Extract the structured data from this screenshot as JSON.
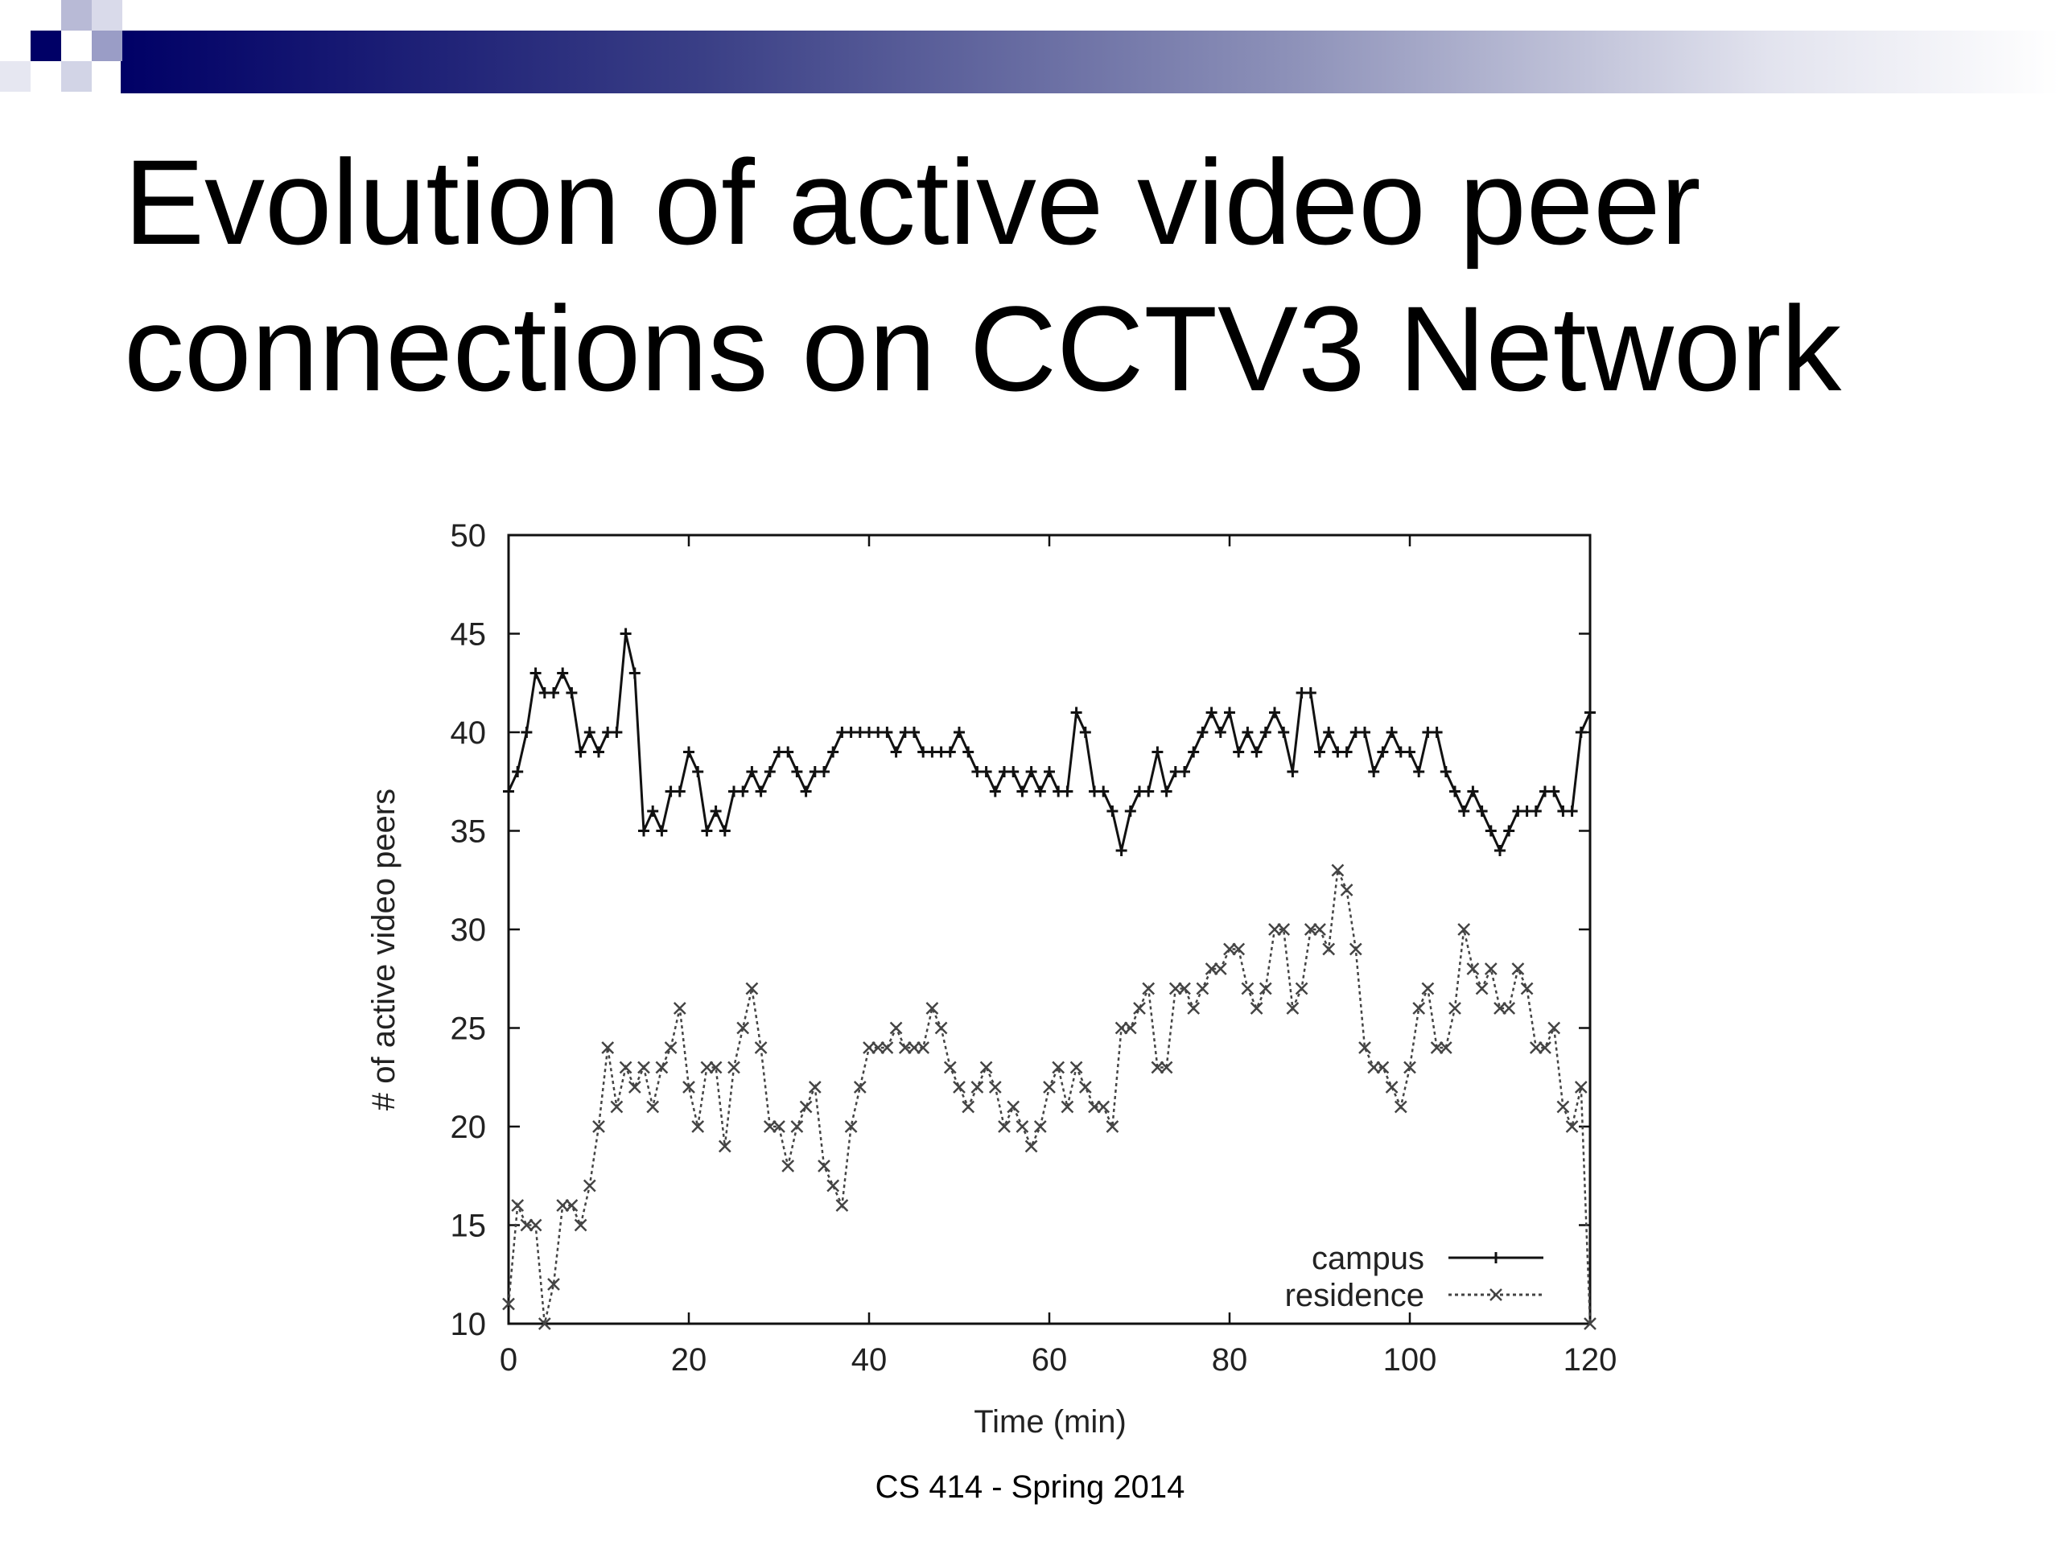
{
  "slide": {
    "title_line1": "Evolution of active video peer",
    "title_line2": "connections on CCTV3 Network",
    "footer": "CS 414 - Spring 2014"
  },
  "colors": {
    "title_bar_dark": "#000066",
    "title_bar_light": "#c8cae0",
    "campus": "#111111",
    "residence": "#444444"
  },
  "chart_data": {
    "type": "line",
    "title": "",
    "xlabel": "Time (min)",
    "ylabel": "# of active video peers",
    "xlim": [
      0,
      120
    ],
    "ylim": [
      10,
      50
    ],
    "xticks": [
      0,
      20,
      40,
      60,
      80,
      100,
      120
    ],
    "yticks": [
      10,
      15,
      20,
      25,
      30,
      35,
      40,
      45,
      50
    ],
    "grid": false,
    "legend_position": "bottom-right",
    "series": [
      {
        "name": "campus",
        "marker": "+",
        "line": "solid",
        "x": [
          0,
          1,
          2,
          3,
          4,
          5,
          6,
          7,
          8,
          9,
          10,
          11,
          12,
          13,
          14,
          15,
          16,
          17,
          18,
          19,
          20,
          21,
          22,
          23,
          24,
          25,
          26,
          27,
          28,
          29,
          30,
          31,
          32,
          33,
          34,
          35,
          36,
          37,
          38,
          39,
          40,
          41,
          42,
          43,
          44,
          45,
          46,
          47,
          48,
          49,
          50,
          51,
          52,
          53,
          54,
          55,
          56,
          57,
          58,
          59,
          60,
          61,
          62,
          63,
          64,
          65,
          66,
          67,
          68,
          69,
          70,
          71,
          72,
          73,
          74,
          75,
          76,
          77,
          78,
          79,
          80,
          81,
          82,
          83,
          84,
          85,
          86,
          87,
          88,
          89,
          90,
          91,
          92,
          93,
          94,
          95,
          96,
          97,
          98,
          99,
          100,
          101,
          102,
          103,
          104,
          105,
          106,
          107,
          108,
          109,
          110,
          111,
          112,
          113,
          114,
          115,
          116,
          117,
          118,
          119,
          120
        ],
        "y": [
          37,
          38,
          40,
          43,
          42,
          42,
          43,
          42,
          39,
          40,
          39,
          40,
          40,
          45,
          43,
          35,
          36,
          35,
          37,
          37,
          39,
          38,
          35,
          36,
          35,
          37,
          37,
          38,
          37,
          38,
          39,
          39,
          38,
          37,
          38,
          38,
          39,
          40,
          40,
          40,
          40,
          40,
          40,
          39,
          40,
          40,
          39,
          39,
          39,
          39,
          40,
          39,
          38,
          38,
          37,
          38,
          38,
          37,
          38,
          37,
          38,
          37,
          37,
          41,
          40,
          37,
          37,
          36,
          34,
          36,
          37,
          37,
          39,
          37,
          38,
          38,
          39,
          40,
          41,
          40,
          41,
          39,
          40,
          39,
          40,
          41,
          40,
          38,
          42,
          42,
          39,
          40,
          39,
          39,
          40,
          40,
          38,
          39,
          40,
          39,
          39,
          38,
          40,
          40,
          38,
          37,
          36,
          37,
          36,
          35,
          34,
          35,
          36,
          36,
          36,
          37,
          37,
          36,
          36,
          40,
          41
        ]
      },
      {
        "name": "residence",
        "marker": "x",
        "line": "dotted",
        "x": [
          0,
          1,
          2,
          3,
          4,
          5,
          6,
          7,
          8,
          9,
          10,
          11,
          12,
          13,
          14,
          15,
          16,
          17,
          18,
          19,
          20,
          21,
          22,
          23,
          24,
          25,
          26,
          27,
          28,
          29,
          30,
          31,
          32,
          33,
          34,
          35,
          36,
          37,
          38,
          39,
          40,
          41,
          42,
          43,
          44,
          45,
          46,
          47,
          48,
          49,
          50,
          51,
          52,
          53,
          54,
          55,
          56,
          57,
          58,
          59,
          60,
          61,
          62,
          63,
          64,
          65,
          66,
          67,
          68,
          69,
          70,
          71,
          72,
          73,
          74,
          75,
          76,
          77,
          78,
          79,
          80,
          81,
          82,
          83,
          84,
          85,
          86,
          87,
          88,
          89,
          90,
          91,
          92,
          93,
          94,
          95,
          96,
          97,
          98,
          99,
          100,
          101,
          102,
          103,
          104,
          105,
          106,
          107,
          108,
          109,
          110,
          111,
          112,
          113,
          114,
          115,
          116,
          117,
          118,
          119,
          120
        ],
        "y": [
          11,
          16,
          15,
          15,
          10,
          12,
          16,
          16,
          15,
          17,
          20,
          24,
          21,
          23,
          22,
          23,
          21,
          23,
          24,
          26,
          22,
          20,
          23,
          23,
          19,
          23,
          25,
          27,
          24,
          20,
          20,
          18,
          20,
          21,
          22,
          18,
          17,
          16,
          20,
          22,
          24,
          24,
          24,
          25,
          24,
          24,
          24,
          26,
          25,
          23,
          22,
          21,
          22,
          23,
          22,
          20,
          21,
          20,
          19,
          20,
          22,
          23,
          21,
          23,
          22,
          21,
          21,
          20,
          25,
          25,
          26,
          27,
          23,
          23,
          27,
          27,
          26,
          27,
          28,
          28,
          29,
          29,
          27,
          26,
          27,
          30,
          30,
          26,
          27,
          30,
          30,
          29,
          33,
          32,
          29,
          24,
          23,
          23,
          22,
          21,
          23,
          26,
          27,
          24,
          24,
          26,
          30,
          28,
          27,
          28,
          26,
          26,
          28,
          27,
          24,
          24,
          25,
          21,
          20,
          22,
          10
        ]
      }
    ]
  }
}
